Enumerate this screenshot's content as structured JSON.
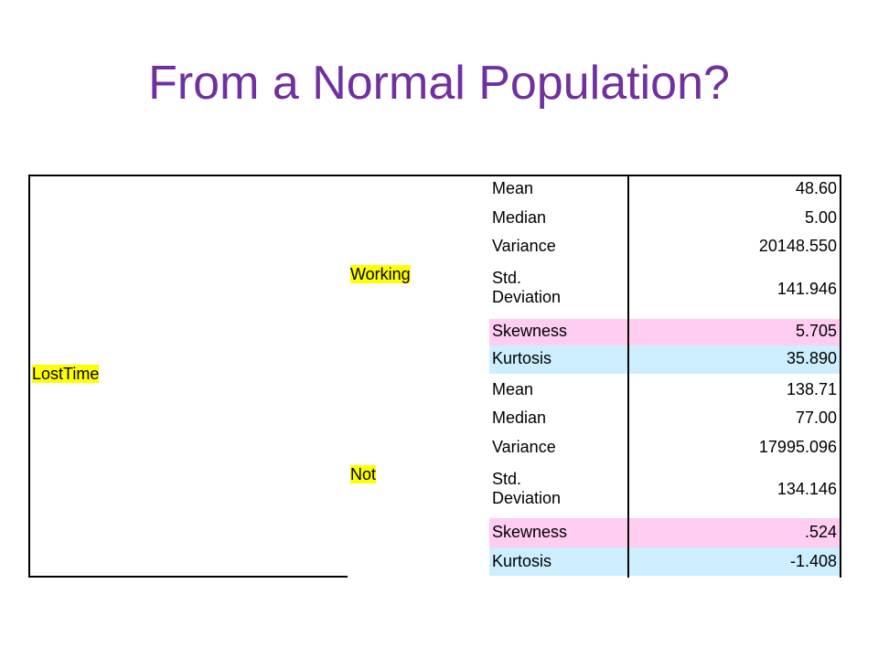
{
  "title": "From a Normal Population?",
  "variable_label": "LostTime",
  "colors": {
    "title": "#7030a0",
    "highlight": "#ffff00",
    "skewness_row": "#ffccf2",
    "kurtosis_row": "#cceeff"
  },
  "groups": [
    {
      "label": "Working",
      "stats": [
        {
          "name": "Mean",
          "value": "48.60"
        },
        {
          "name": "Median",
          "value": "5.00"
        },
        {
          "name": "Variance",
          "value": "20148.550"
        },
        {
          "name": "Std. Deviation",
          "name_line1": "Std.",
          "name_line2": "Deviation",
          "value": "141.946"
        },
        {
          "name": "Skewness",
          "value": "5.705"
        },
        {
          "name": "Kurtosis",
          "value": "35.890"
        }
      ]
    },
    {
      "label": "Not",
      "stats": [
        {
          "name": "Mean",
          "value": "138.71"
        },
        {
          "name": "Median",
          "value": "77.00"
        },
        {
          "name": "Variance",
          "value": "17995.096"
        },
        {
          "name": "Std. Deviation",
          "name_line1": "Std.",
          "name_line2": "Deviation",
          "value": "134.146"
        },
        {
          "name": "Skewness",
          "value": ".524"
        },
        {
          "name": "Kurtosis",
          "value": "-1.408"
        }
      ]
    }
  ]
}
